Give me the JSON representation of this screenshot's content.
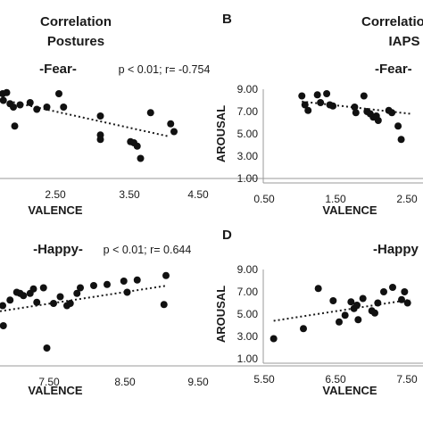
{
  "title_left": [
    "Correlation",
    "Postures"
  ],
  "title_right": [
    "Correlation",
    "IAPS"
  ],
  "chart_data": [
    {
      "id": "postures-fear",
      "type": "scatter",
      "subtitle": "-Fear-",
      "stat": "p < 0.01; r= -0.754",
      "xlabel": "VALENCE",
      "ylabel": "",
      "xticks": [
        "2.50",
        "3.50",
        "4.50"
      ],
      "yticks": [],
      "xlim": [
        1.5,
        4.5
      ],
      "ylim": [
        1.0,
        9.0
      ],
      "trend": [
        [
          1.5,
          7.7
        ],
        [
          4.0,
          4.4
        ]
      ],
      "points": [
        [
          1.5,
          8.2
        ],
        [
          1.55,
          7.6
        ],
        [
          1.6,
          8.3
        ],
        [
          1.65,
          7.3
        ],
        [
          1.7,
          7.0
        ],
        [
          1.72,
          5.3
        ],
        [
          1.8,
          7.2
        ],
        [
          1.95,
          7.4
        ],
        [
          2.05,
          6.8
        ],
        [
          2.2,
          7.0
        ],
        [
          2.38,
          8.2
        ],
        [
          2.45,
          7.0
        ],
        [
          3.0,
          6.2
        ],
        [
          3.0,
          4.5
        ],
        [
          3.0,
          4.1
        ],
        [
          3.45,
          3.9
        ],
        [
          3.5,
          3.8
        ],
        [
          3.55,
          3.5
        ],
        [
          3.6,
          2.4
        ],
        [
          3.75,
          6.5
        ],
        [
          4.05,
          5.5
        ],
        [
          4.1,
          4.8
        ]
      ]
    },
    {
      "id": "iaps-fear",
      "type": "scatter",
      "subtitle": "-Fear-",
      "stat": "",
      "letter": "B",
      "xlabel": "VALENCE",
      "ylabel": "AROUSAL",
      "xticks": [
        "0.50",
        "1.50",
        "2.50"
      ],
      "yticks": [
        "1.00",
        "3.00",
        "5.00",
        "7.00",
        "9.00"
      ],
      "xlim": [
        0.5,
        2.8
      ],
      "ylim": [
        1.0,
        9.0
      ],
      "trend": [
        [
          1.05,
          7.9
        ],
        [
          2.8,
          6.8
        ]
      ],
      "points": [
        [
          1.05,
          8.4
        ],
        [
          1.1,
          7.6
        ],
        [
          1.15,
          7.1
        ],
        [
          1.3,
          8.5
        ],
        [
          1.35,
          7.8
        ],
        [
          1.45,
          8.6
        ],
        [
          1.5,
          7.6
        ],
        [
          1.55,
          7.5
        ],
        [
          1.9,
          7.4
        ],
        [
          1.92,
          6.9
        ],
        [
          2.05,
          8.4
        ],
        [
          2.1,
          7.0
        ],
        [
          2.15,
          6.8
        ],
        [
          2.2,
          6.5
        ],
        [
          2.25,
          6.6
        ],
        [
          2.28,
          6.2
        ],
        [
          2.45,
          7.1
        ],
        [
          2.5,
          6.9
        ],
        [
          2.6,
          5.7
        ],
        [
          2.65,
          4.5
        ]
      ]
    },
    {
      "id": "postures-happy",
      "type": "scatter",
      "subtitle": "-Happy-",
      "stat": "p < 0.01; r= 0.644",
      "xlabel": "VALENCE",
      "ylabel": "",
      "xticks": [
        "7.50",
        "8.50",
        "9.50"
      ],
      "yticks": [],
      "xlim": [
        6.5,
        9.5
      ],
      "ylim": [
        1.0,
        9.0
      ],
      "trend": [
        [
          6.5,
          5.5
        ],
        [
          9.0,
          7.8
        ]
      ],
      "points": [
        [
          6.5,
          6.0
        ],
        [
          6.55,
          4.2
        ],
        [
          6.65,
          6.5
        ],
        [
          6.75,
          7.2
        ],
        [
          6.8,
          7.1
        ],
        [
          6.85,
          6.9
        ],
        [
          6.95,
          7.1
        ],
        [
          7.0,
          7.5
        ],
        [
          7.05,
          6.3
        ],
        [
          7.15,
          7.6
        ],
        [
          7.2,
          2.2
        ],
        [
          7.3,
          6.2
        ],
        [
          7.4,
          6.8
        ],
        [
          7.5,
          6.0
        ],
        [
          7.55,
          6.2
        ],
        [
          7.65,
          7.1
        ],
        [
          7.7,
          7.6
        ],
        [
          7.9,
          7.8
        ],
        [
          8.1,
          7.9
        ],
        [
          8.35,
          8.2
        ],
        [
          8.4,
          7.2
        ],
        [
          8.55,
          8.3
        ],
        [
          8.95,
          6.1
        ],
        [
          8.98,
          8.7
        ]
      ]
    },
    {
      "id": "iaps-happy",
      "type": "scatter",
      "subtitle": "-Happy",
      "stat": "",
      "letter": "D",
      "xlabel": "VALENCE",
      "ylabel": "AROUSAL",
      "xticks": [
        "5.50",
        "6.50",
        "7.50"
      ],
      "yticks": [
        "1.00",
        "3.00",
        "5.00",
        "7.00",
        "9.00"
      ],
      "xlim": [
        5.5,
        7.9
      ],
      "ylim": [
        1.0,
        9.0
      ],
      "trend": [
        [
          5.6,
          4.4
        ],
        [
          7.9,
          6.3
        ]
      ],
      "points": [
        [
          5.6,
          2.8
        ],
        [
          6.1,
          3.7
        ],
        [
          6.35,
          7.3
        ],
        [
          6.6,
          6.2
        ],
        [
          6.7,
          4.3
        ],
        [
          6.8,
          4.9
        ],
        [
          6.9,
          6.1
        ],
        [
          6.95,
          5.5
        ],
        [
          7.0,
          5.8
        ],
        [
          7.02,
          4.5
        ],
        [
          7.1,
          6.4
        ],
        [
          7.25,
          5.3
        ],
        [
          7.3,
          5.1
        ],
        [
          7.35,
          6.0
        ],
        [
          7.45,
          7.0
        ],
        [
          7.6,
          7.4
        ],
        [
          7.75,
          6.3
        ],
        [
          7.8,
          7.0
        ],
        [
          7.85,
          6.0
        ]
      ]
    }
  ],
  "letters": {
    "b": "B",
    "d": "D"
  }
}
